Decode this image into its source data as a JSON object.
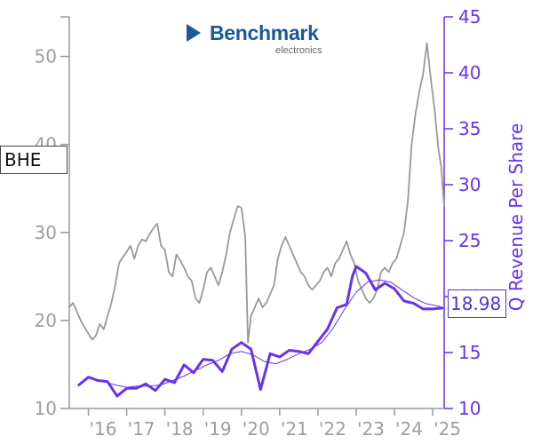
{
  "ticker": "BHE",
  "last_value_label": "18.98",
  "logo": {
    "brand": "Benchmark",
    "sub": "electronics"
  },
  "colors": {
    "price": "#999999",
    "revenue": "#6633ee",
    "revenue_trend": "#6633ee"
  },
  "chart_data": {
    "type": "line",
    "title": "",
    "y2label": "Q Revenue Per Share",
    "x_tick_labels": [
      "'16",
      "'17",
      "'18",
      "'19",
      "'20",
      "'21",
      "'22",
      "'23",
      "'24",
      "'25"
    ],
    "y_left": {
      "ticks": [
        10,
        20,
        30,
        40,
        50
      ],
      "range": [
        10,
        54.5
      ]
    },
    "y_right": {
      "ticks": [
        10,
        15,
        20,
        25,
        30,
        35,
        40,
        45
      ],
      "range": [
        10,
        45
      ]
    },
    "x_range": [
      2015.5,
      2025.3
    ],
    "grid": false,
    "series": [
      {
        "name": "",
        "axis": "left",
        "points": [
          [
            2015.5,
            21.5
          ],
          [
            2015.6,
            22.0
          ],
          [
            2015.7,
            21.0
          ],
          [
            2015.8,
            20.0
          ],
          [
            2015.9,
            19.2
          ],
          [
            2016.0,
            18.5
          ],
          [
            2016.1,
            17.8
          ],
          [
            2016.2,
            18.3
          ],
          [
            2016.3,
            19.6
          ],
          [
            2016.4,
            19.0
          ],
          [
            2016.5,
            20.5
          ],
          [
            2016.6,
            22.0
          ],
          [
            2016.7,
            24.0
          ],
          [
            2016.8,
            26.5
          ],
          [
            2016.9,
            27.2
          ],
          [
            2017.0,
            27.8
          ],
          [
            2017.1,
            28.5
          ],
          [
            2017.2,
            27.0
          ],
          [
            2017.3,
            28.5
          ],
          [
            2017.4,
            29.2
          ],
          [
            2017.5,
            29.0
          ],
          [
            2017.6,
            29.8
          ],
          [
            2017.7,
            30.5
          ],
          [
            2017.8,
            31.0
          ],
          [
            2017.9,
            28.5
          ],
          [
            2018.0,
            28.0
          ],
          [
            2018.1,
            25.5
          ],
          [
            2018.2,
            25.0
          ],
          [
            2018.3,
            27.5
          ],
          [
            2018.4,
            26.8
          ],
          [
            2018.5,
            26.0
          ],
          [
            2018.6,
            25.0
          ],
          [
            2018.7,
            24.5
          ],
          [
            2018.8,
            22.5
          ],
          [
            2018.9,
            22.0
          ],
          [
            2019.0,
            23.5
          ],
          [
            2019.1,
            25.5
          ],
          [
            2019.2,
            26.0
          ],
          [
            2019.3,
            25.0
          ],
          [
            2019.4,
            24.0
          ],
          [
            2019.5,
            25.5
          ],
          [
            2019.6,
            27.5
          ],
          [
            2019.7,
            30.0
          ],
          [
            2019.8,
            31.5
          ],
          [
            2019.9,
            33.0
          ],
          [
            2020.0,
            32.8
          ],
          [
            2020.1,
            29.5
          ],
          [
            2020.17,
            17.5
          ],
          [
            2020.25,
            20.5
          ],
          [
            2020.35,
            21.5
          ],
          [
            2020.45,
            22.5
          ],
          [
            2020.55,
            21.5
          ],
          [
            2020.65,
            22.0
          ],
          [
            2020.75,
            23.0
          ],
          [
            2020.85,
            24.0
          ],
          [
            2020.95,
            27.0
          ],
          [
            2021.05,
            28.5
          ],
          [
            2021.15,
            29.5
          ],
          [
            2021.25,
            28.5
          ],
          [
            2021.35,
            27.5
          ],
          [
            2021.45,
            26.5
          ],
          [
            2021.55,
            25.5
          ],
          [
            2021.65,
            25.0
          ],
          [
            2021.75,
            24.0
          ],
          [
            2021.85,
            23.5
          ],
          [
            2021.95,
            24.0
          ],
          [
            2022.05,
            24.5
          ],
          [
            2022.15,
            25.5
          ],
          [
            2022.25,
            26.0
          ],
          [
            2022.35,
            25.0
          ],
          [
            2022.45,
            26.5
          ],
          [
            2022.55,
            27.0
          ],
          [
            2022.65,
            28.0
          ],
          [
            2022.75,
            29.0
          ],
          [
            2022.85,
            27.5
          ],
          [
            2022.95,
            26.5
          ],
          [
            2023.05,
            24.5
          ],
          [
            2023.15,
            23.5
          ],
          [
            2023.25,
            22.5
          ],
          [
            2023.35,
            22.0
          ],
          [
            2023.45,
            22.5
          ],
          [
            2023.55,
            23.5
          ],
          [
            2023.65,
            25.5
          ],
          [
            2023.75,
            26.0
          ],
          [
            2023.85,
            25.5
          ],
          [
            2023.95,
            26.5
          ],
          [
            2024.05,
            27.0
          ],
          [
            2024.15,
            28.5
          ],
          [
            2024.25,
            30.0
          ],
          [
            2024.35,
            33.5
          ],
          [
            2024.45,
            40.0
          ],
          [
            2024.55,
            43.5
          ],
          [
            2024.65,
            46.0
          ],
          [
            2024.75,
            48.0
          ],
          [
            2024.85,
            51.5
          ],
          [
            2024.95,
            47.5
          ],
          [
            2025.05,
            44.0
          ],
          [
            2025.15,
            39.5
          ],
          [
            2025.22,
            37.5
          ],
          [
            2025.3,
            33.0
          ]
        ]
      },
      {
        "name": "Q Revenue Per Share",
        "axis": "right",
        "points": [
          [
            2015.75,
            12.1
          ],
          [
            2016.0,
            12.8
          ],
          [
            2016.25,
            12.5
          ],
          [
            2016.5,
            12.4
          ],
          [
            2016.75,
            11.1
          ],
          [
            2017.0,
            11.8
          ],
          [
            2017.25,
            11.8
          ],
          [
            2017.5,
            12.2
          ],
          [
            2017.75,
            11.6
          ],
          [
            2018.0,
            12.6
          ],
          [
            2018.25,
            12.3
          ],
          [
            2018.5,
            13.9
          ],
          [
            2018.75,
            13.2
          ],
          [
            2019.0,
            14.4
          ],
          [
            2019.25,
            14.3
          ],
          [
            2019.5,
            13.3
          ],
          [
            2019.75,
            15.3
          ],
          [
            2020.0,
            15.9
          ],
          [
            2020.25,
            15.3
          ],
          [
            2020.5,
            11.7
          ],
          [
            2020.75,
            14.9
          ],
          [
            2021.0,
            14.6
          ],
          [
            2021.25,
            15.2
          ],
          [
            2021.5,
            15.1
          ],
          [
            2021.75,
            14.9
          ],
          [
            2022.0,
            16.0
          ],
          [
            2022.25,
            17.1
          ],
          [
            2022.5,
            19.0
          ],
          [
            2022.75,
            19.3
          ],
          [
            2022.9,
            21.8
          ],
          [
            2023.0,
            22.7
          ],
          [
            2023.25,
            22.1
          ],
          [
            2023.5,
            20.6
          ],
          [
            2023.75,
            21.2
          ],
          [
            2024.0,
            20.7
          ],
          [
            2024.25,
            19.6
          ],
          [
            2024.5,
            19.4
          ],
          [
            2024.75,
            18.9
          ],
          [
            2025.0,
            18.9
          ],
          [
            2025.25,
            18.98
          ]
        ]
      },
      {
        "name": "",
        "axis": "right",
        "points": [
          [
            2016.4,
            12.4
          ],
          [
            2016.7,
            12.1
          ],
          [
            2017.0,
            11.9
          ],
          [
            2017.3,
            12.0
          ],
          [
            2017.6,
            12.0
          ],
          [
            2017.9,
            12.1
          ],
          [
            2018.2,
            12.5
          ],
          [
            2018.5,
            12.9
          ],
          [
            2018.8,
            13.4
          ],
          [
            2019.1,
            13.9
          ],
          [
            2019.4,
            14.3
          ],
          [
            2019.7,
            14.9
          ],
          [
            2020.0,
            15.1
          ],
          [
            2020.3,
            14.8
          ],
          [
            2020.6,
            14.2
          ],
          [
            2020.9,
            14.0
          ],
          [
            2021.2,
            14.4
          ],
          [
            2021.5,
            14.9
          ],
          [
            2021.8,
            15.3
          ],
          [
            2022.1,
            15.9
          ],
          [
            2022.4,
            17.2
          ],
          [
            2022.7,
            18.9
          ],
          [
            2023.0,
            20.4
          ],
          [
            2023.3,
            21.3
          ],
          [
            2023.6,
            21.5
          ],
          [
            2023.9,
            21.3
          ],
          [
            2024.2,
            20.6
          ],
          [
            2024.5,
            19.9
          ],
          [
            2024.8,
            19.4
          ],
          [
            2025.2,
            19.1
          ]
        ]
      }
    ]
  }
}
